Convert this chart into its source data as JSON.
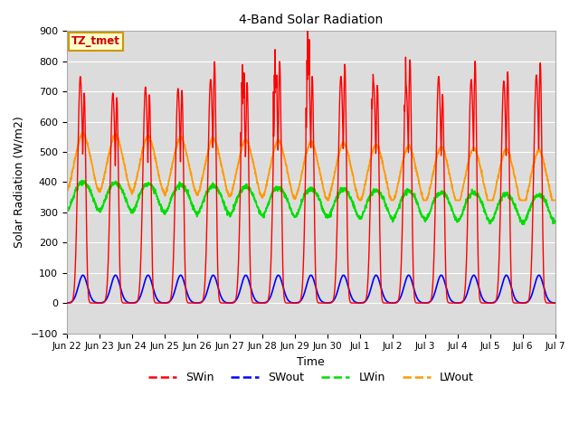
{
  "title": "4-Band Solar Radiation",
  "xlabel": "Time",
  "ylabel": "Solar Radiation (W/m2)",
  "ylim": [
    -100,
    900
  ],
  "bg_color": "#dcdcdc",
  "fig_color": "#ffffff",
  "grid_color": "#ffffff",
  "annotation_text": "TZ_tmet",
  "annotation_box_color": "#ffffcc",
  "annotation_border_color": "#cc9900",
  "annotation_text_color": "#cc0000",
  "series": {
    "SWin": {
      "color": "#ff0000",
      "linewidth": 1.0
    },
    "SWout": {
      "color": "#0000ff",
      "linewidth": 1.2
    },
    "LWin": {
      "color": "#00dd00",
      "linewidth": 1.3
    },
    "LWout": {
      "color": "#ff9900",
      "linewidth": 1.3
    }
  },
  "xtick_labels": [
    "Jun 22",
    "Jun 23",
    "Jun 24",
    "Jun 25",
    "Jun 26",
    "Jun 27",
    "Jun 28",
    "Jun 29",
    "Jun 30",
    "Jul 1",
    "Jul 2",
    "Jul 3",
    "Jul 4",
    "Jul 5",
    "Jul 6",
    "Jul 7"
  ],
  "yticks": [
    -100,
    0,
    100,
    200,
    300,
    400,
    500,
    600,
    700,
    800,
    900
  ],
  "n_days": 15
}
